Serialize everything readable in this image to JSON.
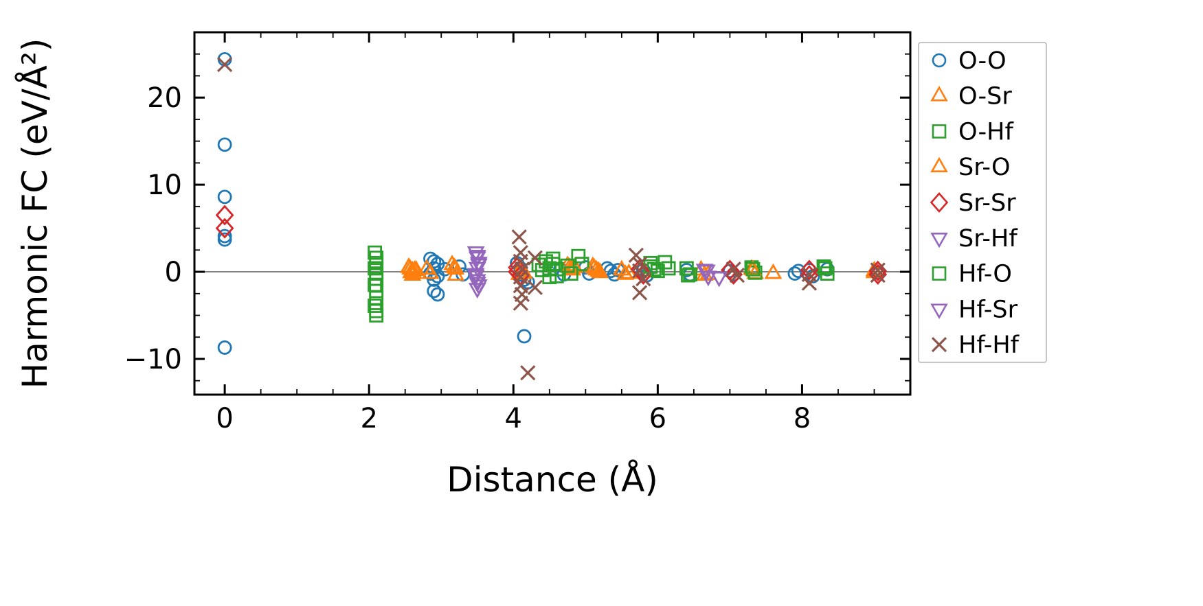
{
  "figure": {
    "background": "#ffffff",
    "axis_color": "#000000",
    "legend_border_color": "#b3b3b3"
  },
  "chart_data": {
    "type": "scatter",
    "title": "",
    "xlabel": "Distance (Å)",
    "ylabel": "Harmonic FC (eV/Å²)",
    "xlim": [
      -0.42,
      9.5
    ],
    "ylim": [
      -14.1,
      27.5
    ],
    "grid": false,
    "legend_position": "outside-right",
    "zero_line": {
      "y": 0,
      "color": "#808080"
    },
    "xticks": {
      "values": [
        0,
        2,
        4,
        6,
        8
      ],
      "labels": [
        "0",
        "2",
        "4",
        "6",
        "8"
      ],
      "minor_step": 0.5
    },
    "yticks": {
      "values": [
        -10,
        0,
        10,
        20
      ],
      "labels": [
        "−10",
        "0",
        "10",
        "20"
      ],
      "minor_step": 2.5
    },
    "series": [
      {
        "name": "O-O",
        "marker": "circle",
        "color": "#1f77b4",
        "points": [
          [
            0,
            24.4
          ],
          [
            0,
            14.6
          ],
          [
            0,
            8.6
          ],
          [
            0,
            4.1
          ],
          [
            0,
            3.7
          ],
          [
            0,
            -8.7
          ],
          [
            2.85,
            1.5
          ],
          [
            2.9,
            1.2
          ],
          [
            2.95,
            0.9
          ],
          [
            2.9,
            0.4
          ],
          [
            2.85,
            -0.2
          ],
          [
            2.95,
            -0.5
          ],
          [
            2.9,
            -0.9
          ],
          [
            2.9,
            -2.2
          ],
          [
            2.95,
            -2.6
          ],
          [
            3.05,
            0.3
          ],
          [
            3.25,
            0.6
          ],
          [
            3.3,
            -0.3
          ],
          [
            4.05,
            1.0
          ],
          [
            4.1,
            0.4
          ],
          [
            4.1,
            -0.3
          ],
          [
            4.15,
            -0.9
          ],
          [
            4.2,
            -1.2
          ],
          [
            4.15,
            -7.4
          ],
          [
            4.65,
            0.3
          ],
          [
            4.7,
            -0.3
          ],
          [
            5.0,
            0.5
          ],
          [
            5.05,
            -0.2
          ],
          [
            5.3,
            0.4
          ],
          [
            5.35,
            0.1
          ],
          [
            5.4,
            -0.3
          ],
          [
            5.45,
            0.2
          ],
          [
            5.8,
            0.2
          ],
          [
            5.85,
            -0.4
          ],
          [
            6.4,
            0.2
          ],
          [
            6.45,
            -0.3
          ],
          [
            7.0,
            0.1
          ],
          [
            7.05,
            -0.3
          ],
          [
            7.9,
            -0.2
          ],
          [
            7.95,
            0.1
          ],
          [
            8.1,
            0.2
          ],
          [
            8.15,
            -0.5
          ],
          [
            8.35,
            0.3
          ],
          [
            9.05,
            -0.1
          ]
        ]
      },
      {
        "name": "O-Sr",
        "marker": "triangle-up",
        "color": "#ff7f0e",
        "points": [
          [
            2.55,
            0.5
          ],
          [
            2.6,
            0.1
          ],
          [
            2.6,
            -0.4
          ],
          [
            2.65,
            0.2
          ],
          [
            2.8,
            0.3
          ],
          [
            2.85,
            -0.2
          ],
          [
            3.15,
            0.8
          ],
          [
            3.2,
            0.3
          ],
          [
            3.2,
            -0.4
          ],
          [
            4.1,
            0.3
          ],
          [
            4.15,
            -0.2
          ],
          [
            4.75,
            0.7
          ],
          [
            4.8,
            0.3
          ],
          [
            4.85,
            0.5
          ],
          [
            5.1,
            0.6
          ],
          [
            5.15,
            0.2
          ],
          [
            5.2,
            -0.1
          ],
          [
            5.5,
            0.2
          ],
          [
            5.55,
            -0.3
          ],
          [
            6.6,
            0.2
          ],
          [
            6.65,
            -0.4
          ],
          [
            7.3,
            0.3
          ],
          [
            7.35,
            -0.2
          ],
          [
            7.6,
            -0.2
          ],
          [
            9.0,
            0.1
          ]
        ]
      },
      {
        "name": "O-Hf",
        "marker": "square",
        "color": "#2ca02c",
        "points": [
          [
            2.08,
            2.2
          ],
          [
            2.1,
            1.6
          ],
          [
            2.1,
            1.0
          ],
          [
            2.08,
            0.4
          ],
          [
            2.1,
            -0.2
          ],
          [
            2.1,
            -0.8
          ],
          [
            2.08,
            -1.5
          ],
          [
            2.1,
            -2.2
          ],
          [
            2.1,
            -3.0
          ],
          [
            2.08,
            -3.9
          ],
          [
            2.1,
            -4.5
          ],
          [
            2.1,
            -5.0
          ],
          [
            4.35,
            0.8
          ],
          [
            4.4,
            0.2
          ],
          [
            4.55,
            1.5
          ],
          [
            4.55,
            0.9
          ],
          [
            4.6,
            0.3
          ],
          [
            4.6,
            -0.5
          ],
          [
            4.9,
            1.8
          ],
          [
            4.95,
            0.9
          ],
          [
            5.9,
            1.0
          ],
          [
            5.95,
            0.3
          ],
          [
            6.1,
            1.1
          ],
          [
            6.15,
            0.4
          ],
          [
            6.4,
            0.4
          ],
          [
            6.45,
            -0.3
          ],
          [
            7.3,
            0.5
          ],
          [
            7.35,
            -0.1
          ],
          [
            8.3,
            0.6
          ],
          [
            8.35,
            -0.2
          ]
        ]
      },
      {
        "name": "Sr-O",
        "marker": "triangle-up",
        "color": "#ff7f0e",
        "points": [
          [
            2.57,
            0.3
          ],
          [
            2.62,
            -0.2
          ],
          [
            2.58,
            -0.1
          ],
          [
            2.63,
            0.15
          ],
          [
            3.18,
            0.5
          ],
          [
            4.12,
            0.1
          ],
          [
            4.08,
            -0.3
          ],
          [
            4.78,
            0.5
          ],
          [
            4.82,
            0.2
          ],
          [
            5.12,
            0.4
          ],
          [
            5.18,
            0.05
          ],
          [
            5.6,
            -0.2
          ],
          [
            6.7,
            -0.3
          ],
          [
            7.32,
            0.2
          ],
          [
            9.0,
            -0.1
          ]
        ]
      },
      {
        "name": "Sr-Sr",
        "marker": "diamond",
        "color": "#d62728",
        "points": [
          [
            0,
            6.5
          ],
          [
            0,
            5.0
          ],
          [
            4.05,
            0.5
          ],
          [
            4.05,
            0.0
          ],
          [
            4.1,
            -0.4
          ],
          [
            5.75,
            0.3
          ],
          [
            5.8,
            -0.3
          ],
          [
            7.0,
            0.2
          ],
          [
            7.05,
            -0.3
          ],
          [
            8.1,
            0.2
          ],
          [
            8.1,
            -0.4
          ],
          [
            9.05,
            0.1
          ],
          [
            9.05,
            -0.3
          ]
        ]
      },
      {
        "name": "Sr-Hf",
        "marker": "triangle-down",
        "color": "#9467bd",
        "points": [
          [
            3.48,
            2.3
          ],
          [
            3.5,
            1.7
          ],
          [
            3.52,
            1.1
          ],
          [
            3.5,
            0.5
          ],
          [
            3.48,
            -0.2
          ],
          [
            3.5,
            -0.9
          ],
          [
            3.52,
            -1.5
          ],
          [
            3.5,
            -1.9
          ],
          [
            6.65,
            0.3
          ],
          [
            6.7,
            -0.5
          ],
          [
            6.85,
            -0.6
          ]
        ]
      },
      {
        "name": "Hf-O",
        "marker": "square",
        "color": "#2ca02c",
        "points": [
          [
            4.45,
            1.2
          ],
          [
            4.5,
            0.4
          ],
          [
            4.5,
            -0.6
          ],
          [
            4.75,
            0.7
          ],
          [
            4.8,
            -0.2
          ],
          [
            5.9,
            0.6
          ],
          [
            6.0,
            0.1
          ],
          [
            6.42,
            -0.4
          ],
          [
            7.32,
            0.3
          ],
          [
            8.32,
            0.4
          ]
        ]
      },
      {
        "name": "Hf-Sr",
        "marker": "triangle-down",
        "color": "#9467bd",
        "points": [
          [
            3.5,
            1.9
          ],
          [
            3.52,
            0.9
          ],
          [
            3.48,
            -0.4
          ],
          [
            3.5,
            -1.2
          ],
          [
            6.68,
            0.2
          ]
        ]
      },
      {
        "name": "Hf-Hf",
        "marker": "x",
        "color": "#8c564b",
        "points": [
          [
            0,
            23.8
          ],
          [
            4.08,
            4.0
          ],
          [
            4.1,
            2.2
          ],
          [
            4.1,
            1.2
          ],
          [
            4.12,
            0.3
          ],
          [
            4.1,
            -0.6
          ],
          [
            4.1,
            -1.6
          ],
          [
            4.12,
            -2.6
          ],
          [
            4.1,
            -3.6
          ],
          [
            4.2,
            -11.6
          ],
          [
            4.3,
            1.6
          ],
          [
            4.3,
            -1.8
          ],
          [
            5.7,
            1.9
          ],
          [
            5.75,
            0.9
          ],
          [
            5.75,
            0.1
          ],
          [
            5.8,
            -0.8
          ],
          [
            5.75,
            -2.4
          ],
          [
            7.05,
            0.3
          ],
          [
            7.1,
            -0.4
          ],
          [
            8.1,
            -0.3
          ],
          [
            8.1,
            -1.3
          ],
          [
            9.05,
            0.2
          ],
          [
            9.05,
            -0.4
          ]
        ]
      }
    ]
  }
}
